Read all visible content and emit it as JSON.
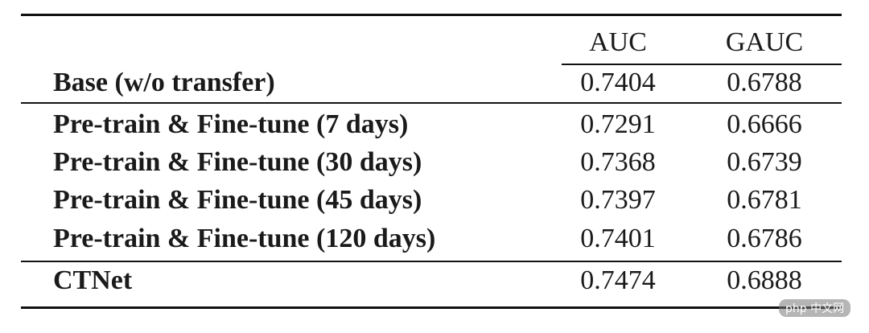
{
  "table": {
    "headers": {
      "method": "",
      "auc": "AUC",
      "gauc": "GAUC"
    },
    "rows": [
      {
        "method": "Base (w/o transfer)",
        "auc": "0.7404",
        "gauc": "0.6788"
      },
      {
        "method": "Pre-train & Fine-tune (7 days)",
        "auc": "0.7291",
        "gauc": "0.6666"
      },
      {
        "method": "Pre-train & Fine-tune (30 days)",
        "auc": "0.7368",
        "gauc": "0.6739"
      },
      {
        "method": "Pre-train & Fine-tune (45 days)",
        "auc": "0.7397",
        "gauc": "0.6781"
      },
      {
        "method": "Pre-train & Fine-tune (120 days)",
        "auc": "0.7401",
        "gauc": "0.6786"
      },
      {
        "method": "CTNet",
        "auc": "0.7474",
        "gauc": "0.6888"
      }
    ]
  },
  "watermark": {
    "text": "php 中文网"
  }
}
